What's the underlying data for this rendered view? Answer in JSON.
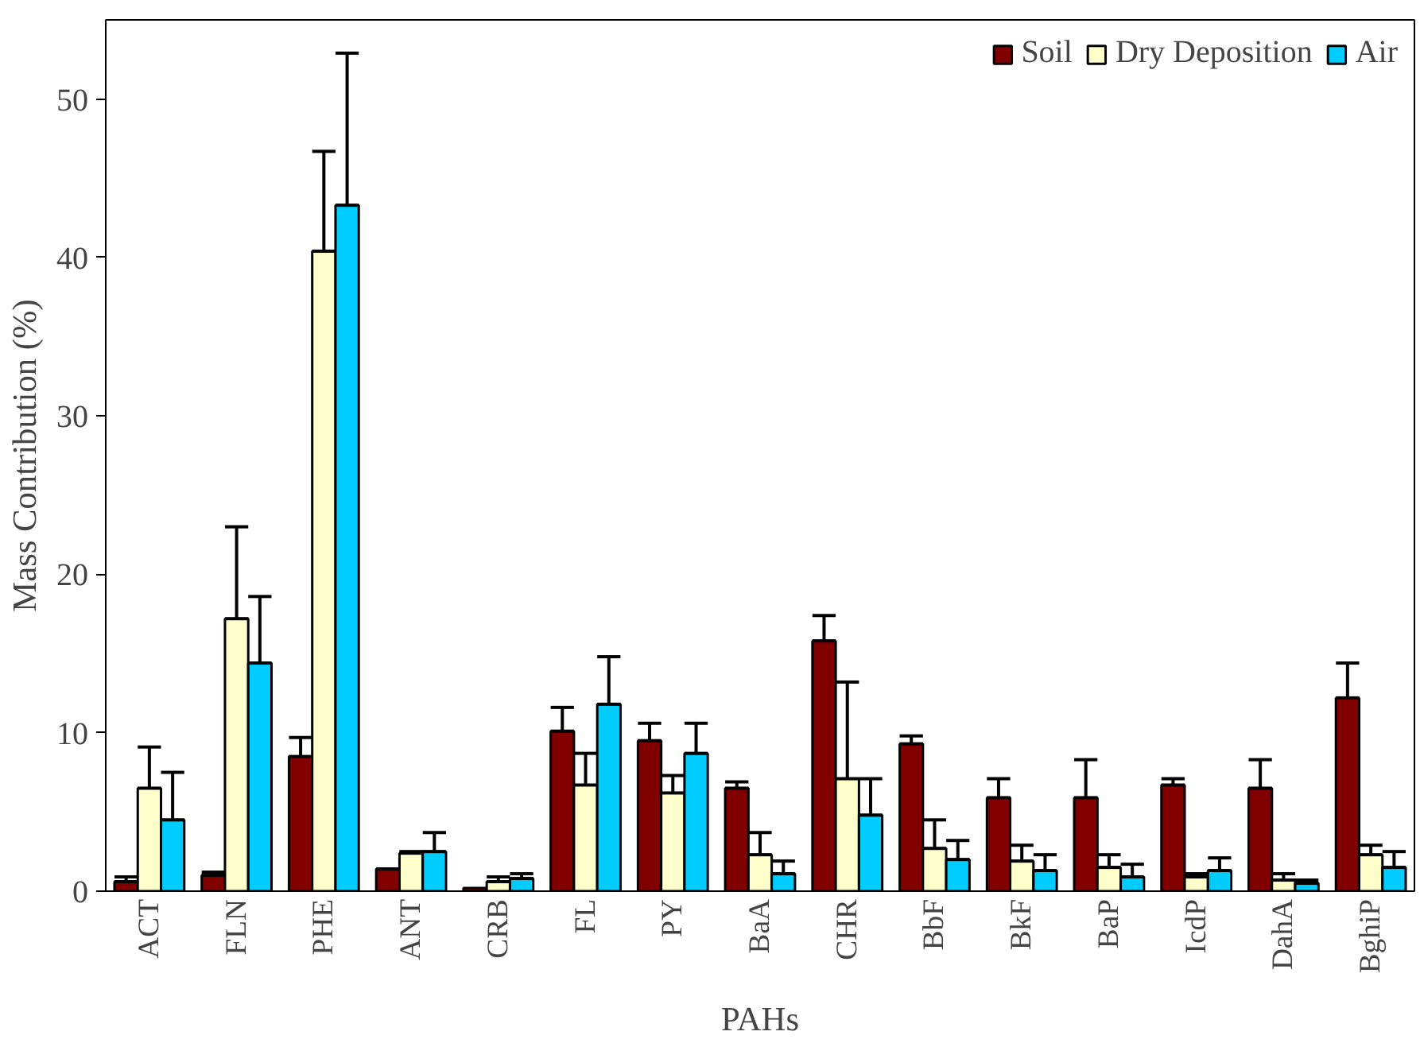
{
  "chart_data": {
    "type": "bar",
    "xlabel": "PAHs",
    "ylabel": "Mass Contribution (%)",
    "categories": [
      "ACT",
      "FLN",
      "PHE",
      "ANT",
      "CRB",
      "FL",
      "PY",
      "BaA",
      "CHR",
      "BbF",
      "BkF",
      "BaP",
      "IcdP",
      "DahA",
      "BghiP"
    ],
    "ylim": [
      0,
      55
    ],
    "yticks": [
      0,
      10,
      20,
      30,
      40,
      50
    ],
    "grid": false,
    "legend": "top right",
    "series": [
      {
        "name": "Soil",
        "color": "#800000",
        "values": [
          0.6,
          1.0,
          8.5,
          1.4,
          0.2,
          10.1,
          9.5,
          6.5,
          15.8,
          9.3,
          5.9,
          5.9,
          6.7,
          6.5,
          12.2
        ],
        "errors": [
          [
            0.6,
            0.9
          ],
          [
            1.0,
            1.2
          ],
          [
            8.5,
            9.7
          ],
          [
            1.4,
            1.4
          ],
          null,
          [
            10.1,
            11.6
          ],
          [
            9.5,
            10.6
          ],
          [
            6.5,
            6.9
          ],
          [
            15.8,
            17.4
          ],
          [
            9.3,
            9.8
          ],
          [
            5.9,
            7.1
          ],
          [
            5.9,
            8.3
          ],
          [
            6.7,
            7.1
          ],
          [
            6.5,
            8.3
          ],
          [
            12.2,
            14.4
          ]
        ]
      },
      {
        "name": "Dry Deposition",
        "color": "#ffffcc",
        "values": [
          6.5,
          17.2,
          40.4,
          2.4,
          0.6,
          6.7,
          6.2,
          2.3,
          7.1,
          2.7,
          1.9,
          1.5,
          0.9,
          0.7,
          2.3
        ],
        "errors": [
          [
            6.5,
            9.1
          ],
          [
            17.2,
            23.0
          ],
          [
            40.4,
            46.7
          ],
          [
            2.4,
            2.5
          ],
          [
            0.6,
            0.9
          ],
          [
            6.7,
            8.7
          ],
          [
            6.2,
            7.3
          ],
          [
            2.3,
            3.7
          ],
          [
            7.1,
            13.2
          ],
          [
            2.7,
            4.5
          ],
          [
            1.9,
            2.9
          ],
          [
            1.5,
            2.3
          ],
          [
            0.9,
            1.1
          ],
          [
            0.7,
            1.1
          ],
          [
            2.3,
            2.9
          ]
        ]
      },
      {
        "name": "Air",
        "color": "#00ccff",
        "values": [
          4.5,
          14.4,
          43.3,
          2.5,
          0.8,
          11.8,
          8.7,
          1.1,
          4.8,
          2.0,
          1.3,
          0.9,
          1.3,
          0.5,
          1.5
        ],
        "errors": [
          [
            4.5,
            7.5
          ],
          [
            14.4,
            18.6
          ],
          [
            43.3,
            52.9
          ],
          [
            2.5,
            3.7
          ],
          [
            0.8,
            1.1
          ],
          [
            11.8,
            14.8
          ],
          [
            8.7,
            10.6
          ],
          [
            1.1,
            1.9
          ],
          [
            4.8,
            7.1
          ],
          [
            2.0,
            3.2
          ],
          [
            1.3,
            2.3
          ],
          [
            0.9,
            1.7
          ],
          [
            1.3,
            2.1
          ],
          [
            0.5,
            0.7
          ],
          [
            1.5,
            2.5
          ]
        ]
      }
    ]
  }
}
